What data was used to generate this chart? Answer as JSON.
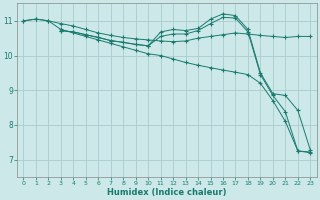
{
  "xlabel": "Humidex (Indice chaleur)",
  "bg_color": "#cce8e8",
  "grid_color": "#aacccc",
  "line_color": "#1a7a6e",
  "xlim": [
    -0.5,
    23.5
  ],
  "ylim": [
    6.5,
    11.5
  ],
  "yticks": [
    7,
    8,
    9,
    10,
    11
  ],
  "xticks": [
    0,
    1,
    2,
    3,
    4,
    5,
    6,
    7,
    8,
    9,
    10,
    11,
    12,
    13,
    14,
    15,
    16,
    17,
    18,
    19,
    20,
    21,
    22,
    23
  ],
  "line1_x": [
    0,
    1,
    2,
    3,
    4,
    5,
    6,
    7,
    8,
    9,
    10,
    11,
    12,
    13,
    14,
    15,
    16,
    17,
    18,
    19,
    20,
    21,
    22,
    23
  ],
  "line1_y": [
    11.0,
    11.05,
    11.0,
    10.92,
    10.85,
    10.75,
    10.65,
    10.58,
    10.52,
    10.48,
    10.45,
    10.42,
    10.4,
    10.42,
    10.5,
    10.55,
    10.6,
    10.65,
    10.62,
    10.58,
    10.55,
    10.52,
    10.55,
    10.55
  ],
  "line2_x": [
    0,
    1,
    2,
    3,
    5,
    6,
    7,
    8,
    9,
    10,
    11,
    12,
    13,
    14,
    15,
    16,
    17,
    18,
    19,
    20,
    21,
    22,
    23
  ],
  "line2_y": [
    11.0,
    11.05,
    11.0,
    10.75,
    10.55,
    10.45,
    10.35,
    10.25,
    10.15,
    10.05,
    10.0,
    9.9,
    9.8,
    9.72,
    9.65,
    9.58,
    9.52,
    9.45,
    9.2,
    8.7,
    8.1,
    7.25,
    7.2
  ],
  "line3_x": [
    3,
    4,
    5,
    6,
    7,
    8,
    9,
    10,
    11,
    12,
    13,
    14,
    15,
    16,
    17,
    18,
    19,
    20,
    21,
    22,
    23
  ],
  "line3_y": [
    10.72,
    10.68,
    10.6,
    10.52,
    10.43,
    10.38,
    10.32,
    10.28,
    10.68,
    10.75,
    10.72,
    10.78,
    11.05,
    11.2,
    11.15,
    10.75,
    9.5,
    8.9,
    8.85,
    8.42,
    7.28
  ],
  "line4_x": [
    3,
    4,
    5,
    6,
    7,
    8,
    9,
    10,
    11,
    12,
    13,
    14,
    15,
    16,
    17,
    18,
    19,
    20,
    21,
    22,
    23
  ],
  "line4_y": [
    10.72,
    10.68,
    10.6,
    10.52,
    10.43,
    10.38,
    10.32,
    10.28,
    10.55,
    10.62,
    10.62,
    10.72,
    10.92,
    11.1,
    11.08,
    10.68,
    9.45,
    8.85,
    8.38,
    7.25,
    7.22
  ]
}
